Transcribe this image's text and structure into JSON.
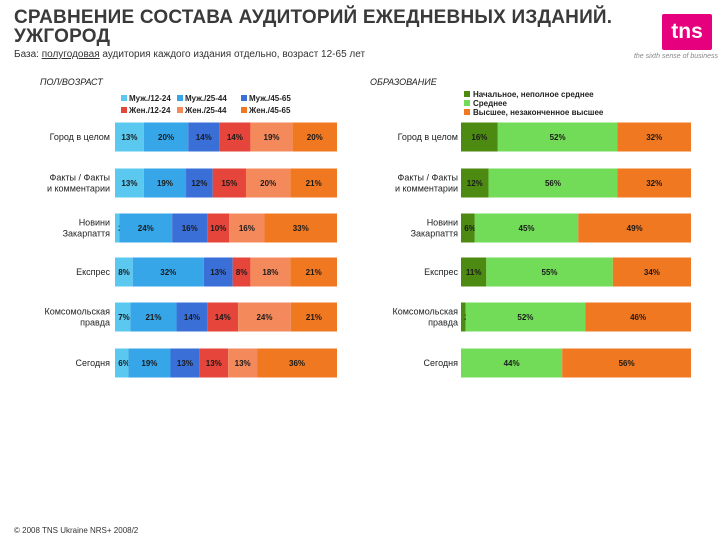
{
  "header": {
    "title": "СРАВНЕНИЕ СОСТАВА АУДИТОРИЙ ЕЖЕДНЕВНЫХ ИЗДАНИЙ. УЖГОРОД",
    "subtitle_prefix": "База: ",
    "subtitle_underlined": "полугодовая",
    "subtitle_suffix": " аудитория каждого издания отдельно, возраст 12-65 лет",
    "logo_text": "tns",
    "tagline": "the sixth sense of business"
  },
  "footer": {
    "text": "© 2008 TNS Ukraine NRS+ 2008/2"
  },
  "colors": {
    "male_12_24": "#5bc8f0",
    "male_25_44": "#36a6e8",
    "male_45_65": "#3a6fd8",
    "female_12_24": "#e5453a",
    "female_25_44": "#f48a5c",
    "female_45_65": "#f07820",
    "edu_primary": "#4d8a12",
    "edu_secondary": "#72dc58",
    "edu_higher": "#f07820"
  },
  "chart_data": [
    {
      "type": "bar",
      "orientation": "horizontal",
      "stacked": true,
      "section_title": "ПОЛ/ВОЗРАСТ",
      "legend_placement": "top",
      "categories": [
        "Город в целом",
        "Факты / Факты и комментарии",
        "Новини Закарпаття",
        "Експрес",
        "Комсомольская правда",
        "Сегодня"
      ],
      "legend_columns": [
        [
          "Муж./12-24",
          "Жен./12-24"
        ],
        [
          "Муж./25-44",
          "Жен./25-44"
        ],
        [
          "Муж./45-65",
          "Жен./45-65"
        ]
      ],
      "series": [
        {
          "name": "Муж./12-24",
          "color_key": "male_12_24",
          "values": [
            13,
            13,
            2,
            8,
            7,
            6
          ]
        },
        {
          "name": "Муж./25-44",
          "color_key": "male_25_44",
          "values": [
            20,
            19,
            24,
            32,
            21,
            19
          ]
        },
        {
          "name": "Муж./45-65",
          "color_key": "male_45_65",
          "values": [
            14,
            12,
            16,
            13,
            14,
            13
          ]
        },
        {
          "name": "Жен./12-24",
          "color_key": "female_12_24",
          "values": [
            14,
            15,
            10,
            8,
            14,
            13
          ]
        },
        {
          "name": "Жен./25-44",
          "color_key": "female_25_44",
          "values": [
            19,
            20,
            16,
            18,
            24,
            13
          ]
        },
        {
          "name": "Жен./45-65",
          "color_key": "female_45_65",
          "values": [
            20,
            21,
            33,
            21,
            21,
            36
          ]
        }
      ],
      "labels": [
        [
          "13%",
          "20%",
          "14%",
          "14%",
          "19%",
          "20%"
        ],
        [
          "13%",
          "19%",
          "12%",
          "15%",
          "20%",
          "21%"
        ],
        [
          "2%",
          "24%",
          "16%",
          "10%",
          "16%",
          "33%"
        ],
        [
          "8%",
          "32%",
          "13%",
          "8%",
          "18%",
          "21%"
        ],
        [
          "7%",
          "21%",
          "14%",
          "14%",
          "24%",
          "21%"
        ],
        [
          "6%",
          "19%",
          "13%",
          "13%",
          "13%",
          "36%"
        ]
      ]
    },
    {
      "type": "bar",
      "orientation": "horizontal",
      "stacked": true,
      "section_title": "ОБРАЗОВАНИЕ",
      "legend_placement": "top",
      "categories": [
        "Город в целом",
        "Факты / Факты и комментарии",
        "Новини Закарпаття",
        "Експрес",
        "Комсомольская правда",
        "Сегодня"
      ],
      "series": [
        {
          "name": "Начальное, неполное среднее",
          "color_key": "edu_primary",
          "values": [
            16,
            12,
            6,
            11,
            2,
            0
          ]
        },
        {
          "name": "Среднее",
          "color_key": "edu_secondary",
          "values": [
            52,
            56,
            45,
            55,
            52,
            44
          ]
        },
        {
          "name": "Высшее, незаконченное высшее",
          "color_key": "edu_higher",
          "values": [
            32,
            32,
            49,
            34,
            46,
            56
          ]
        }
      ],
      "labels": [
        [
          "16%",
          "52%",
          "32%"
        ],
        [
          "12%",
          "56%",
          "32%"
        ],
        [
          "6%",
          "45%",
          "49%"
        ],
        [
          "11%",
          "55%",
          "34%"
        ],
        [
          "2%",
          "52%",
          "46%"
        ],
        [
          "",
          "44%",
          "56%"
        ]
      ]
    }
  ]
}
